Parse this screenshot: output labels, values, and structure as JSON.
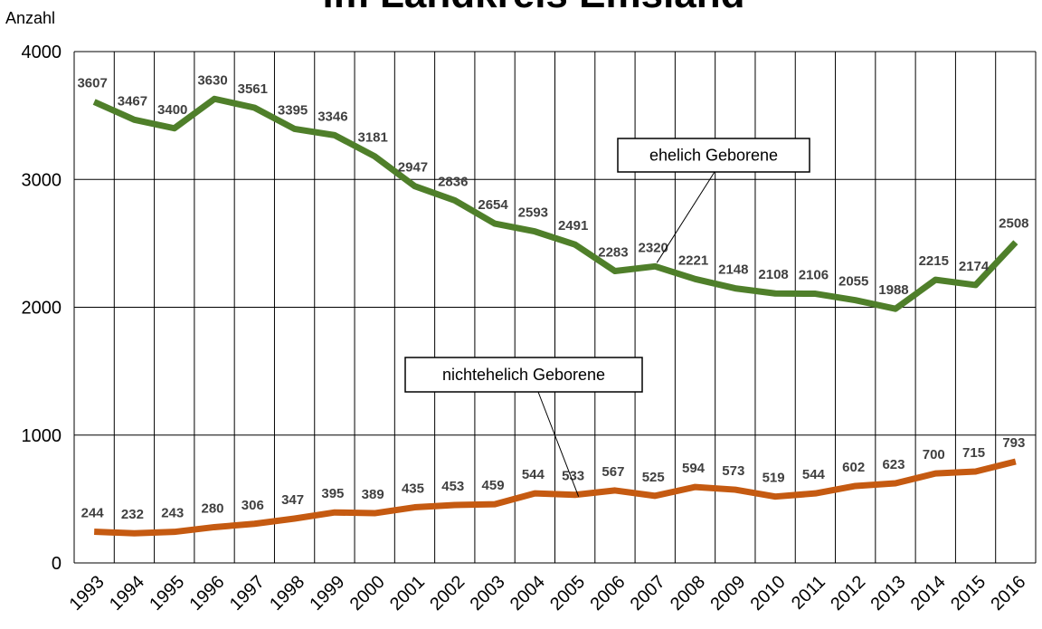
{
  "chart_data": {
    "type": "line",
    "title": "im Landkreis Emsland",
    "y_label": "Anzahl",
    "categories": [
      "1993",
      "1994",
      "1995",
      "1996",
      "1997",
      "1998",
      "1999",
      "2000",
      "2001",
      "2002",
      "2003",
      "2004",
      "2005",
      "2006",
      "2007",
      "2008",
      "2009",
      "2010",
      "2011",
      "2012",
      "2013",
      "2014",
      "2015",
      "2016"
    ],
    "series": [
      {
        "name": "ehelich Geborene",
        "color": "#4f7f2a",
        "values": [
          3607,
          3467,
          3400,
          3630,
          3561,
          3395,
          3346,
          3181,
          2947,
          2836,
          2654,
          2593,
          2491,
          2283,
          2320,
          2221,
          2148,
          2108,
          2106,
          2055,
          1988,
          2215,
          2174,
          2508
        ]
      },
      {
        "name": "nichtehelich Geborene",
        "color": "#c55a11",
        "values": [
          244,
          232,
          243,
          280,
          306,
          347,
          395,
          389,
          435,
          453,
          459,
          544,
          533,
          567,
          525,
          594,
          573,
          519,
          544,
          602,
          623,
          700,
          715,
          793
        ]
      }
    ],
    "ylim": [
      0,
      4000
    ],
    "yticks": [
      0,
      1000,
      2000,
      3000,
      4000
    ],
    "grid": true
  }
}
